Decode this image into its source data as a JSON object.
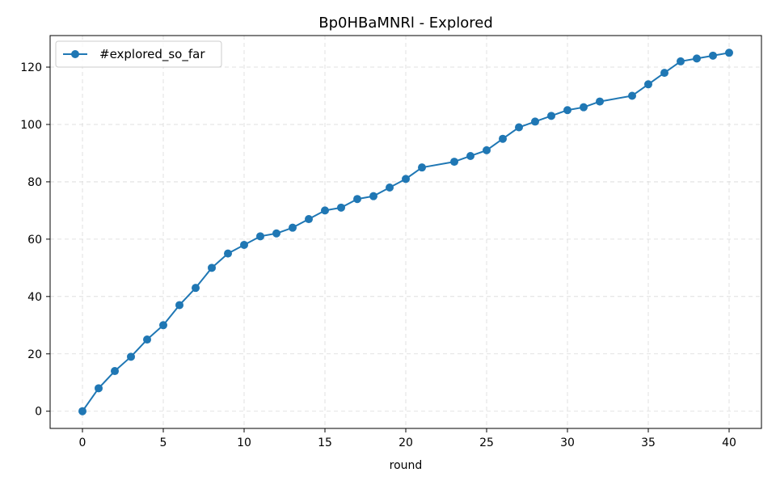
{
  "chart_data": {
    "type": "line",
    "title": "Bp0HBaMNRl - Explored",
    "xlabel": "round",
    "ylabel": "",
    "xlim": [
      -2,
      42
    ],
    "ylim": [
      -6,
      131
    ],
    "xticks": [
      0,
      5,
      10,
      15,
      20,
      25,
      30,
      35,
      40
    ],
    "yticks": [
      0,
      20,
      40,
      60,
      80,
      100,
      120
    ],
    "grid": true,
    "legend": "top-left",
    "series": [
      {
        "name": "#explored_so_far",
        "color": "#1f77b4",
        "marker": "circle",
        "x": [
          0,
          1,
          2,
          3,
          4,
          5,
          6,
          7,
          8,
          9,
          10,
          11,
          12,
          13,
          14,
          15,
          16,
          17,
          18,
          19,
          20,
          21,
          23,
          24,
          25,
          26,
          27,
          28,
          29,
          30,
          31,
          32,
          34,
          35,
          36,
          37,
          38,
          39,
          40
        ],
        "y": [
          0,
          8,
          14,
          19,
          25,
          30,
          37,
          43,
          50,
          55,
          58,
          61,
          62,
          64,
          67,
          70,
          71,
          74,
          75,
          78,
          81,
          85,
          87,
          89,
          91,
          95,
          99,
          101,
          103,
          105,
          106,
          108,
          110,
          114,
          118,
          122,
          123,
          124,
          125
        ]
      }
    ]
  }
}
